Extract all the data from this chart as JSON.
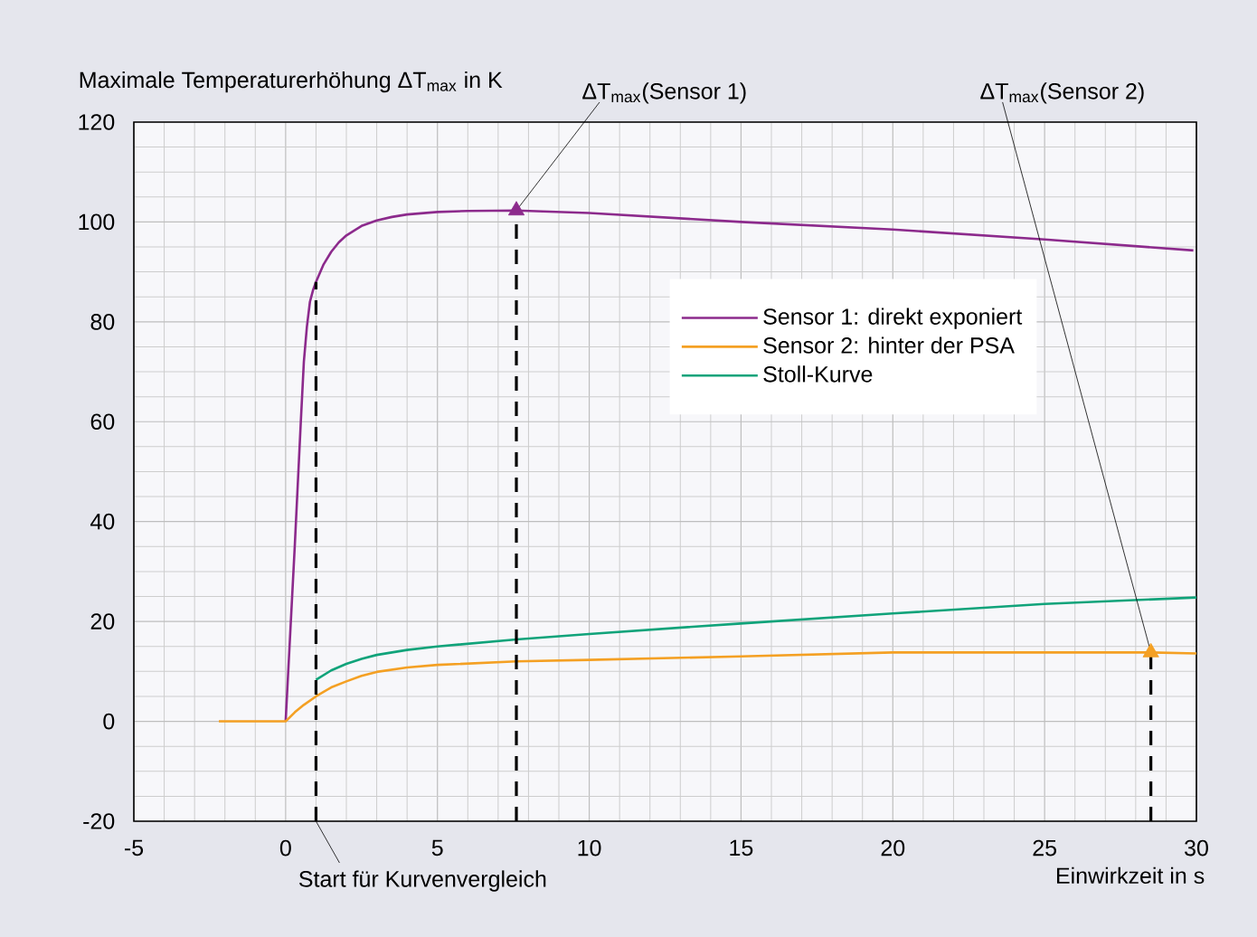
{
  "chart_data": {
    "type": "line",
    "xlabel": "Einwirkzeit in s",
    "ylabel": "Maximale Temperaturerhöhung ΔT$_{max}$ in K",
    "xlim": [
      -5,
      30
    ],
    "xticks": [
      -5,
      0,
      5,
      10,
      15,
      20,
      25,
      30
    ],
    "ylim": [
      -20,
      120
    ],
    "yticks": [
      -20,
      0,
      20,
      40,
      60,
      80,
      100,
      120
    ],
    "grid": true,
    "legend": "top right",
    "series": [
      {
        "name": "Sensor 1: direkt exponiert",
        "color": "#8c2a8c",
        "x": [
          0,
          0.3,
          0.5,
          0.6,
          0.7,
          0.8,
          0.9,
          1,
          1.25,
          1.5,
          1.75,
          2,
          2.5,
          3,
          3.5,
          4,
          5,
          6,
          7.6,
          10,
          15,
          20,
          25,
          29.9
        ],
        "values": [
          0,
          35,
          60,
          72,
          79,
          84,
          86.3,
          88,
          91.5,
          94,
          95.9,
          97.3,
          99.2,
          100.3,
          101,
          101.5,
          102,
          102.2,
          102.3,
          101.8,
          100,
          98.5,
          96.5,
          94.3
        ]
      },
      {
        "name": "Sensor 2: hinter der PSA",
        "color": "#f4a023",
        "x": [
          -2.2,
          0,
          0.3,
          0.6,
          1,
          1.5,
          2,
          2.5,
          3,
          4,
          5,
          7.6,
          10,
          15,
          20,
          25,
          28.5,
          30
        ],
        "values": [
          0,
          0,
          1.8,
          3.3,
          5,
          6.8,
          8,
          9.1,
          9.9,
          10.8,
          11.3,
          12,
          12.3,
          13,
          13.8,
          13.8,
          13.8,
          13.6
        ]
      },
      {
        "name": "Stoll-Kurve",
        "color": "#10a37a",
        "x": [
          1,
          1.5,
          2,
          2.5,
          3,
          4,
          5,
          7.6,
          10,
          15,
          20,
          25,
          30
        ],
        "values": [
          8.3,
          10.2,
          11.5,
          12.5,
          13.3,
          14.3,
          15,
          16.4,
          17.5,
          19.6,
          21.6,
          23.5,
          24.8
        ]
      },
      {
        "type": "scatter",
        "marker": "triangle",
        "color": "#8c2a8c",
        "x": [
          7.6
        ],
        "values": [
          102.3
        ]
      },
      {
        "type": "scatter",
        "marker": "triangle",
        "color": "#f4a023",
        "x": [
          28.5
        ],
        "values": [
          13.8
        ]
      },
      {
        "color": "#000000",
        "line_style": "dashed",
        "x": [
          1,
          1
        ],
        "values": [
          -20,
          88
        ]
      },
      {
        "color": "#000000",
        "line_style": "dashed",
        "x": [
          7.6,
          7.6
        ],
        "values": [
          -20,
          102.3
        ]
      },
      {
        "color": "#000000",
        "line_style": "dashed",
        "x": [
          28.5,
          28.5
        ],
        "values": [
          -20,
          13.8
        ]
      }
    ],
    "annotations": [
      {
        "text": "ΔT$_{max}$(Sensor 1)",
        "x": 7.6,
        "y": 102.3
      },
      {
        "text": "ΔT$_{max}$(Sensor 2)",
        "x": 28.5,
        "y": 13.8
      },
      {
        "text": "Start für Kurvenvergleich",
        "x": 1,
        "y": -20
      }
    ]
  }
}
